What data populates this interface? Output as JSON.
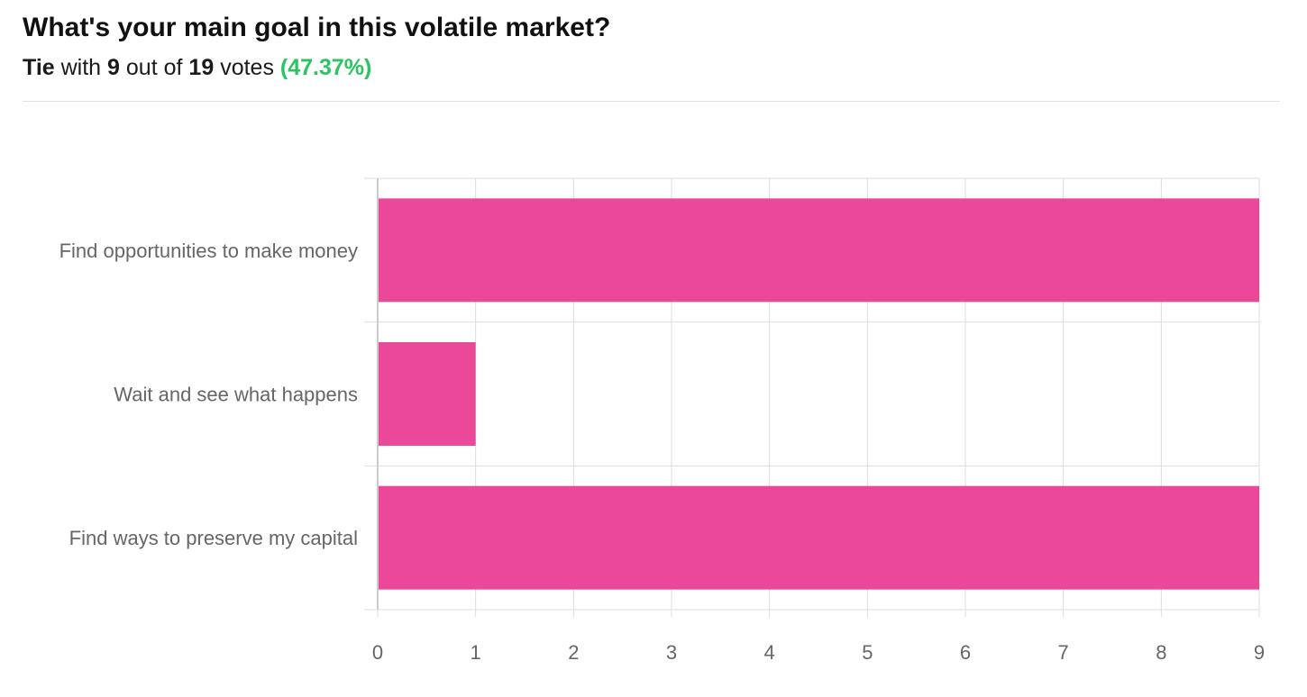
{
  "header": {
    "title": "What's your main goal in this volatile market?",
    "result_word": "Tie",
    "with_word": "with",
    "winning_votes": "9",
    "out_of_word": "out of",
    "total_votes": "19",
    "votes_word": "votes",
    "percent": "(47.37%)"
  },
  "colors": {
    "bar": "#ec4899",
    "grid": "#dddddd",
    "percent": "#2bc461"
  },
  "chart_data": {
    "type": "bar",
    "orientation": "horizontal",
    "categories": [
      "Find opportunities to make money",
      "Wait and see what happens",
      "Find ways to preserve my capital"
    ],
    "values": [
      9,
      1,
      9
    ],
    "xlim": [
      0,
      9
    ],
    "ticks": [
      "0",
      "1",
      "2",
      "3",
      "4",
      "5",
      "6",
      "7",
      "8",
      "9"
    ],
    "grid": true
  }
}
